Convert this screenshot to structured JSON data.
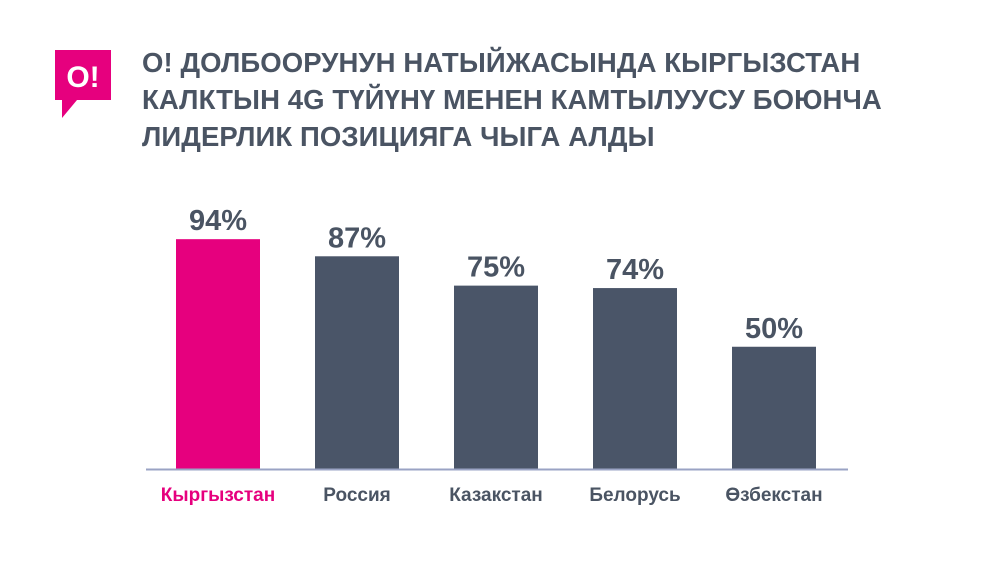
{
  "brand": {
    "logo_text": "O!",
    "accent_color": "#e6007e"
  },
  "header": {
    "title_lines": [
      "О! ДОЛБООРУНУН НАТЫЙЖАСЫНДА КЫРГЫЗСТАН",
      "КАЛКТЫН 4G ТҮЙҮНҮ МЕНЕН КАМТЫЛУУСУ БОЮНЧА",
      "ЛИДЕРЛИК ПОЗИЦИЯГА ЧЫГА АЛДЫ"
    ]
  },
  "chart_data": {
    "type": "bar",
    "categories": [
      "Кыргызстан",
      "Россия",
      "Казакстан",
      "Белорусь",
      "Өзбекстан"
    ],
    "values": [
      94,
      87,
      75,
      74,
      50
    ],
    "value_labels": [
      "94%",
      "87%",
      "75%",
      "74%",
      "50%"
    ],
    "unit": "%",
    "ylim": [
      0,
      100
    ],
    "grid": false,
    "legend": "none",
    "colors": {
      "highlight": "#e6007e",
      "default": "#4a5568",
      "baseline": "#9aa3c4",
      "label_default": "#4a5463"
    },
    "highlight_index": 0
  }
}
